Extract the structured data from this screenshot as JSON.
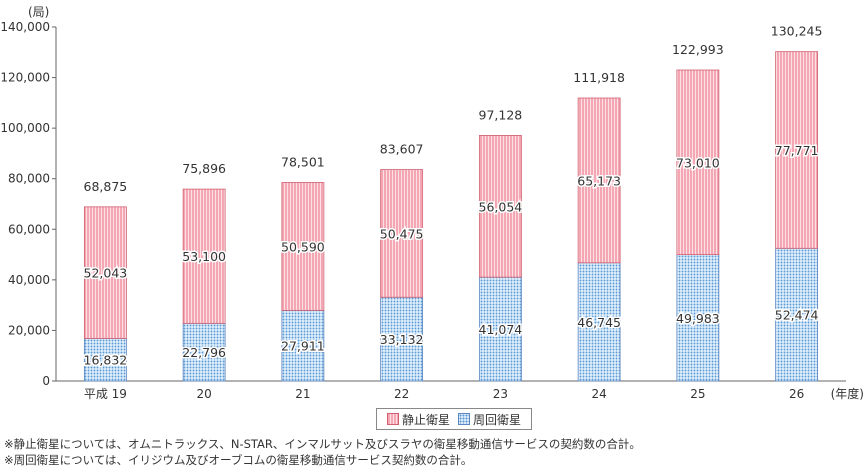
{
  "chart_data": {
    "type": "bar",
    "stacked": true,
    "unit_label": "(局)",
    "x_unit_label": "(年度)",
    "categories": [
      "平成 19",
      "20",
      "21",
      "22",
      "23",
      "24",
      "25",
      "26"
    ],
    "series": [
      {
        "name": "周回衛星",
        "values": [
          16832,
          22796,
          27911,
          33132,
          41074,
          46745,
          49983,
          52474
        ],
        "color": "#5b9bd5"
      },
      {
        "name": "静止衛星",
        "values": [
          52043,
          53100,
          50590,
          50475,
          56054,
          65173,
          73010,
          77771
        ],
        "color": "#f4a6b2"
      }
    ],
    "totals": [
      "68,875",
      "75,896",
      "78,501",
      "83,607",
      "97,128",
      "111,918",
      "122,993",
      "130,245"
    ],
    "segment_labels": {
      "周回衛星": [
        "16,832",
        "22,796",
        "27,911",
        "33,132",
        "41,074",
        "46,745",
        "49,983",
        "52,474"
      ],
      "静止衛星": [
        "52,043",
        "53,100",
        "50,590",
        "50,475",
        "56,054",
        "65,173",
        "73,010",
        "77,771"
      ]
    },
    "yticks": [
      "0",
      "20,000",
      "40,000",
      "60,000",
      "80,000",
      "100,000",
      "120,000",
      "140,000"
    ],
    "ylim": [
      0,
      140000
    ],
    "ytick_step": 20000,
    "legend_position": "bottom-center"
  },
  "legend": {
    "geo_label": "静止衛星",
    "orbit_label": "周回衛星"
  },
  "notes": [
    "※静止衛星については、オムニトラックス、N-STAR、インマルサット及びスラヤの衛星移動通信サービスの契約数の合計。",
    "※周回衛星については、イリジウム及びオーブコムの衛星移動通信サービス契約数の合計。"
  ]
}
